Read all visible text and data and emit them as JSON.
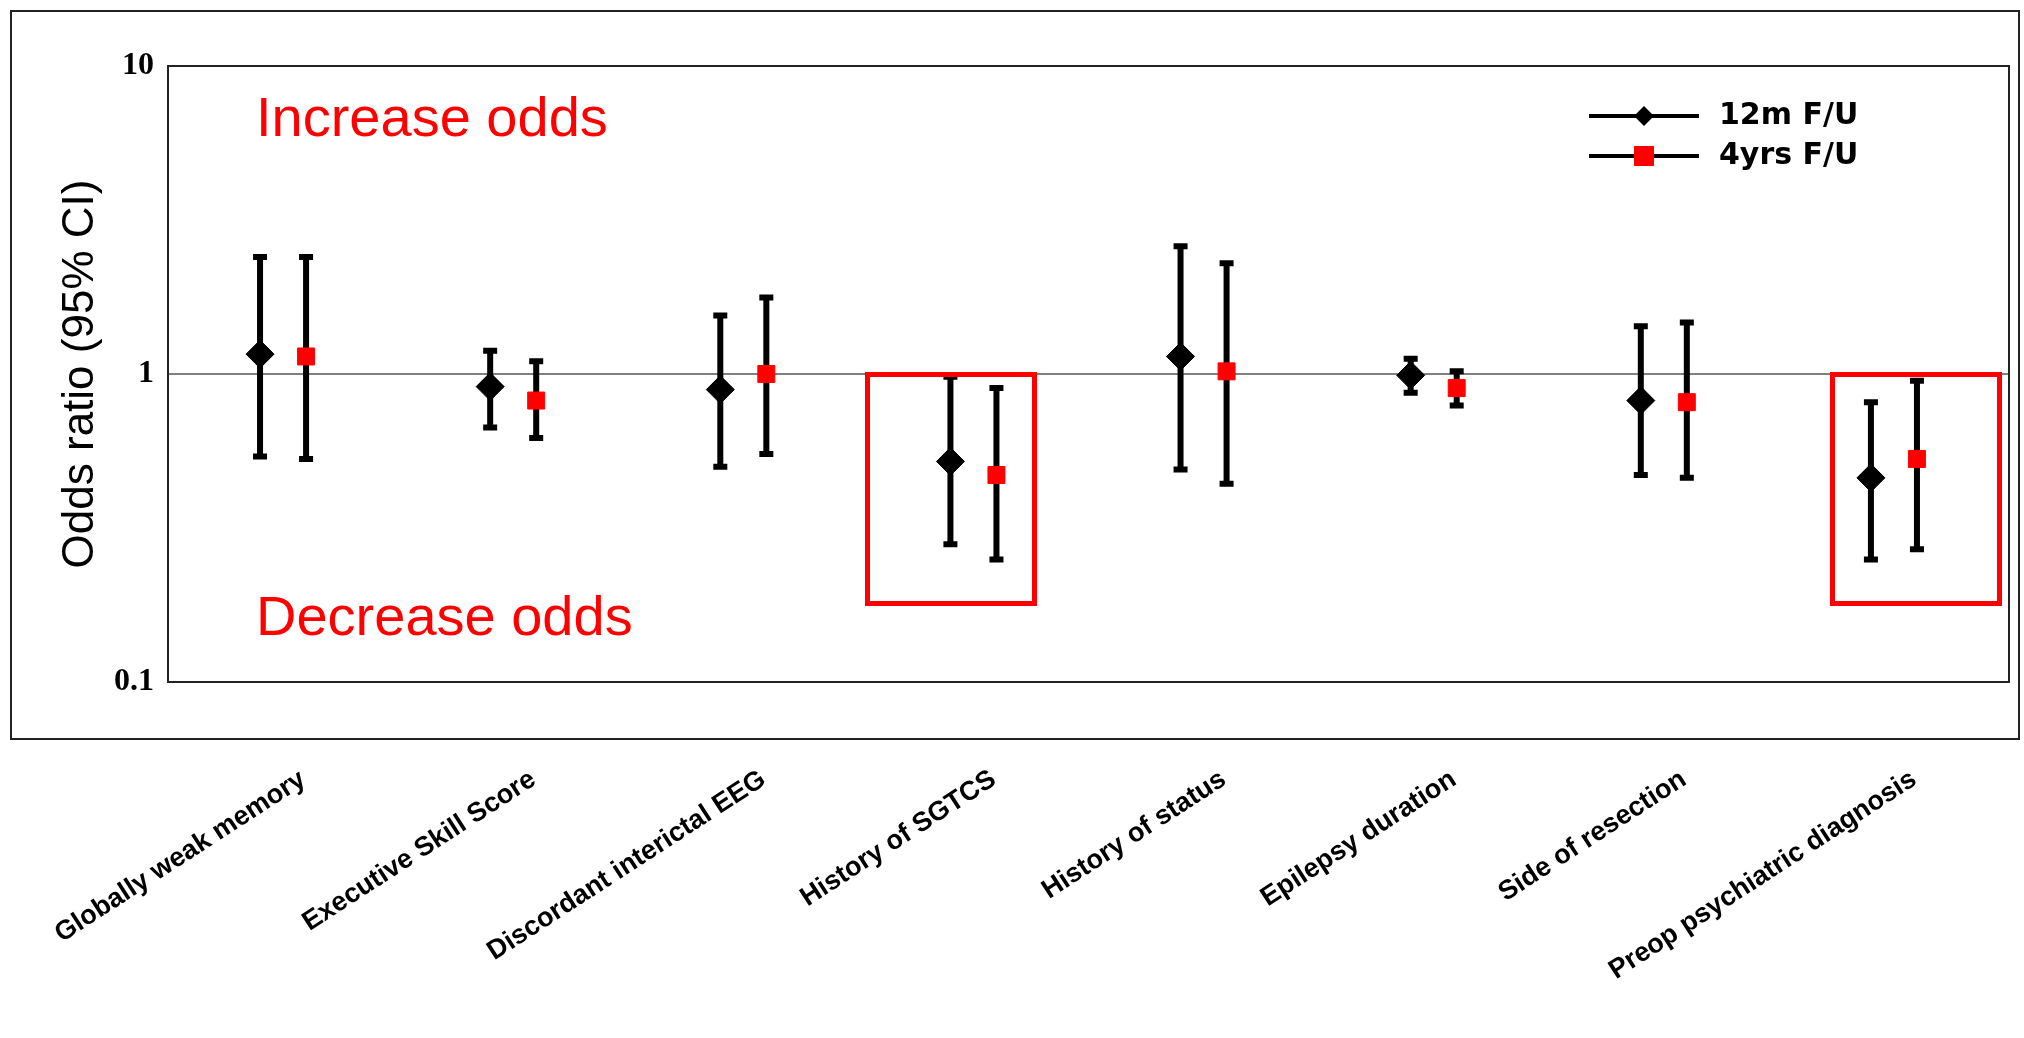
{
  "chart_data": {
    "type": "scatter",
    "ylabel": "Odds ratio (95% CI)",
    "log": "y",
    "ylim": [
      0.1,
      10
    ],
    "yticks": [
      0.1,
      1,
      10
    ],
    "grid": false,
    "legend": "top right",
    "categories": [
      "Globally weak memory",
      "Executive Skill Score",
      "Discordant interictal EEG",
      "History of SGTCS",
      "History of status",
      "Epilepsy duration",
      "Side of resection",
      "Preop psychiatric diagnosis"
    ],
    "series": [
      {
        "name": "12m F/U",
        "color": "#000000",
        "marker": "diamond",
        "values": [
          1.16,
          0.91,
          0.89,
          0.52,
          1.14,
          0.99,
          0.82,
          0.46
        ],
        "errors": [
          [
            0.54,
            2.4
          ],
          [
            0.67,
            1.19
          ],
          [
            0.5,
            1.55
          ],
          [
            0.28,
            0.98
          ],
          [
            0.49,
            2.6
          ],
          [
            0.87,
            1.12
          ],
          [
            0.47,
            1.43
          ],
          [
            0.25,
            0.81
          ]
        ]
      },
      {
        "name": "4yrs F/U",
        "color": "#ff0000",
        "marker": "square",
        "values": [
          1.14,
          0.82,
          1.0,
          0.47,
          1.02,
          0.9,
          0.81,
          0.53
        ],
        "errors": [
          [
            0.53,
            2.4
          ],
          [
            0.62,
            1.1
          ],
          [
            0.55,
            1.77
          ],
          [
            0.25,
            0.9
          ],
          [
            0.44,
            2.29
          ],
          [
            0.79,
            1.02
          ],
          [
            0.46,
            1.47
          ],
          [
            0.27,
            0.95
          ]
        ]
      }
    ],
    "ref_lines": [
      {
        "axis": "y",
        "value": 1,
        "color": "#808080"
      }
    ],
    "annotations": [
      "Increase odds",
      "Decrease odds"
    ]
  }
}
